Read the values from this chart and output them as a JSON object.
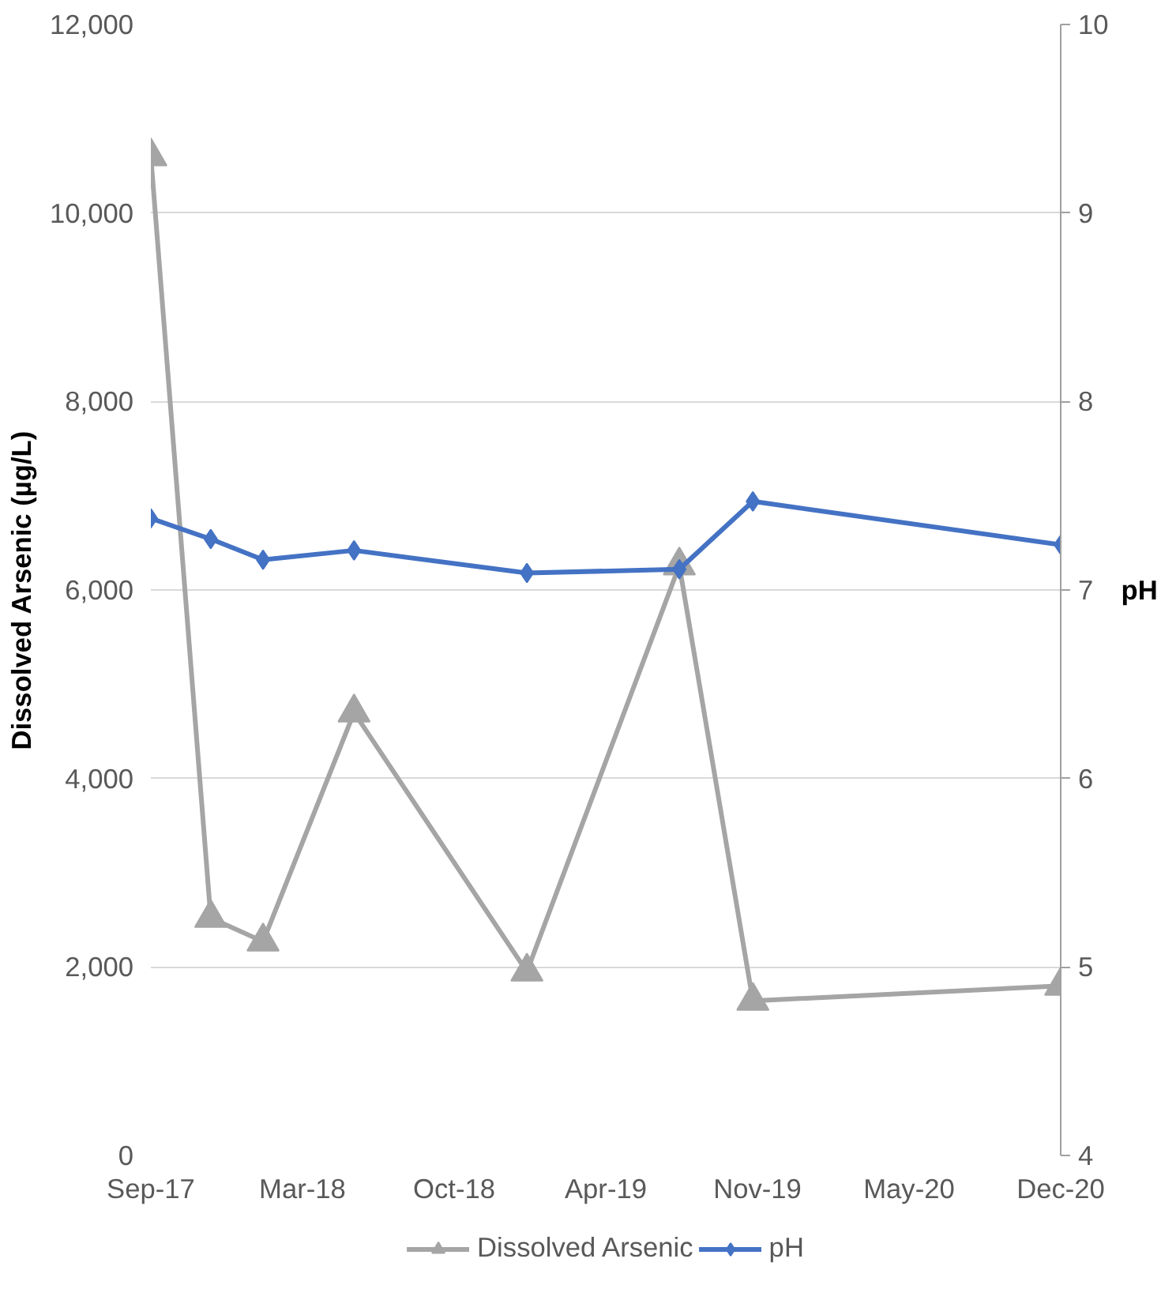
{
  "chart_data": {
    "type": "line",
    "ylabel": "Dissolved Arsenic (µg/L)",
    "y2label": "pH",
    "x": [
      "2017-09-01",
      "2017-11-19",
      "2018-01-27",
      "2018-05-27",
      "2019-01-10",
      "2019-07-30",
      "2019-11-04",
      "2020-12-14"
    ],
    "series": [
      {
        "name": "Dissolved Arsenic",
        "color": "#a5a5a5",
        "marker": "triangle",
        "values": [
          10600,
          2520,
          2270,
          4700,
          1950,
          6260,
          1640,
          1800
        ]
      },
      {
        "name": "pH",
        "color": "#4472c4",
        "marker": "diamond",
        "axis": "y2",
        "values": [
          7.38,
          7.27,
          7.16,
          7.21,
          7.09,
          7.11,
          7.47,
          7.24
        ]
      }
    ],
    "xlim": [
      "2017-09-01",
      "2020-12-14"
    ],
    "xticks": [
      {
        "value": "2017-09-01",
        "label": "Sep-17"
      },
      {
        "value": "2018-03-20",
        "label": "Mar-18"
      },
      {
        "value": "2018-10-06",
        "label": "Oct-18"
      },
      {
        "value": "2019-04-24",
        "label": "Apr-19"
      },
      {
        "value": "2019-11-10",
        "label": "Nov-19"
      },
      {
        "value": "2020-05-28",
        "label": "May-20"
      },
      {
        "value": "2020-12-14",
        "label": "Dec-20"
      }
    ],
    "ylim": [
      0,
      12000
    ],
    "yticks": [
      {
        "value": 0,
        "label": "0"
      },
      {
        "value": 2000,
        "label": "2,000"
      },
      {
        "value": 4000,
        "label": "4,000"
      },
      {
        "value": 6000,
        "label": "6,000"
      },
      {
        "value": 8000,
        "label": "8,000"
      },
      {
        "value": 10000,
        "label": "10,000"
      },
      {
        "value": 12000,
        "label": "12,000"
      }
    ],
    "y2lim": [
      4,
      10
    ],
    "y2ticks": [
      4,
      5,
      6,
      7,
      8,
      9,
      10
    ],
    "grid": "y",
    "legend": "bottom",
    "line_style": "solid"
  }
}
